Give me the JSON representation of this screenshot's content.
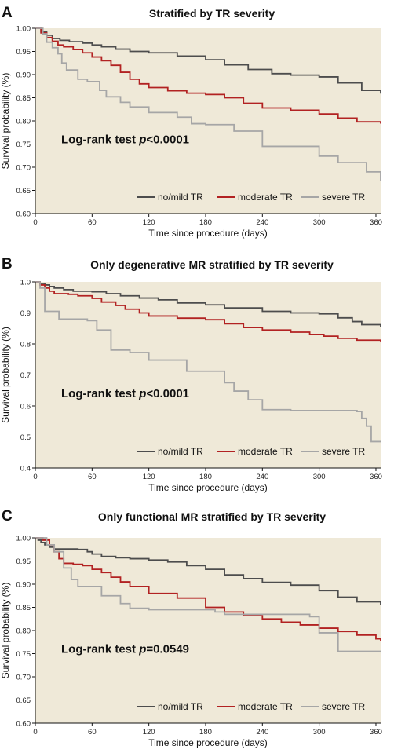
{
  "chart_data": [
    {
      "type": "line",
      "panel_label": "A",
      "title": "Stratified by TR severity",
      "xlabel": "Time since procedure (days)",
      "ylabel": "Survival probability (%)",
      "xlim": [
        0,
        365
      ],
      "ylim": [
        0.6,
        1.0
      ],
      "xticks": [
        0,
        60,
        120,
        180,
        240,
        300,
        360
      ],
      "xtick_labels": [
        "0",
        "60",
        "120",
        "180",
        "240",
        "300",
        "360"
      ],
      "yticks": [
        0.6,
        0.65,
        0.7,
        0.75,
        0.8,
        0.85,
        0.9,
        0.95,
        1.0
      ],
      "ytick_labels": [
        "0.60",
        "0.65",
        "0.70",
        "0.75",
        "0.80",
        "0.85",
        "0.90",
        "0.95",
        "1.00"
      ],
      "annotation": {
        "pre": "Log-rank test ",
        "p": "p",
        "post": "<0.0001"
      },
      "background": "#efe9d8",
      "series": [
        {
          "name": "no/mild TR",
          "color": "#4d4d4d",
          "x": [
            0,
            6,
            12,
            18,
            26,
            36,
            50,
            60,
            70,
            85,
            100,
            120,
            150,
            180,
            200,
            225,
            250,
            270,
            300,
            320,
            345,
            365
          ],
          "y": [
            1.0,
            0.992,
            0.985,
            0.978,
            0.974,
            0.971,
            0.968,
            0.964,
            0.96,
            0.955,
            0.95,
            0.947,
            0.94,
            0.932,
            0.921,
            0.911,
            0.902,
            0.899,
            0.895,
            0.882,
            0.866,
            0.859
          ]
        },
        {
          "name": "moderate TR",
          "color": "#b22222",
          "x": [
            0,
            6,
            12,
            18,
            24,
            30,
            40,
            50,
            60,
            70,
            80,
            90,
            100,
            110,
            120,
            140,
            160,
            180,
            200,
            220,
            240,
            270,
            300,
            320,
            340,
            365
          ],
          "y": [
            1.0,
            0.99,
            0.98,
            0.972,
            0.964,
            0.96,
            0.954,
            0.947,
            0.938,
            0.93,
            0.92,
            0.905,
            0.89,
            0.88,
            0.872,
            0.865,
            0.86,
            0.857,
            0.85,
            0.838,
            0.828,
            0.823,
            0.815,
            0.806,
            0.798,
            0.794
          ]
        },
        {
          "name": "severe TR",
          "color": "#a6a6a6",
          "x": [
            0,
            8,
            12,
            18,
            24,
            28,
            33,
            45,
            55,
            68,
            75,
            90,
            100,
            120,
            150,
            165,
            180,
            210,
            240,
            300,
            320,
            350,
            365
          ],
          "y": [
            1.0,
            0.988,
            0.97,
            0.958,
            0.945,
            0.925,
            0.91,
            0.89,
            0.885,
            0.866,
            0.852,
            0.84,
            0.83,
            0.818,
            0.808,
            0.794,
            0.792,
            0.778,
            0.745,
            0.724,
            0.71,
            0.69,
            0.67
          ]
        }
      ]
    },
    {
      "type": "line",
      "panel_label": "B",
      "title": "Only degenerative MR stratified by TR severity",
      "xlabel": "Time since procedure (days)",
      "ylabel": "Survival probability (%)",
      "xlim": [
        0,
        365
      ],
      "ylim": [
        0.4,
        1.0
      ],
      "xticks": [
        0,
        60,
        120,
        180,
        240,
        300,
        360
      ],
      "xtick_labels": [
        "0",
        "60",
        "120",
        "180",
        "240",
        "300",
        "360"
      ],
      "yticks": [
        0.4,
        0.5,
        0.6,
        0.7,
        0.8,
        0.9,
        1.0
      ],
      "ytick_labels": [
        "0.4",
        "0.5",
        "0.6",
        "0.7",
        "0.8",
        "0.9",
        "1.0"
      ],
      "annotation": {
        "pre": "Log-rank test ",
        "p": "p",
        "post": "<0.0001"
      },
      "background": "#efe9d8",
      "series": [
        {
          "name": "no/mild TR",
          "color": "#4d4d4d",
          "x": [
            0,
            5,
            10,
            15,
            20,
            30,
            40,
            60,
            75,
            90,
            110,
            130,
            150,
            180,
            200,
            240,
            270,
            300,
            320,
            335,
            345,
            365
          ],
          "y": [
            1.0,
            0.995,
            0.99,
            0.985,
            0.98,
            0.975,
            0.97,
            0.968,
            0.962,
            0.955,
            0.948,
            0.942,
            0.932,
            0.926,
            0.916,
            0.905,
            0.9,
            0.897,
            0.884,
            0.872,
            0.862,
            0.853
          ]
        },
        {
          "name": "moderate TR",
          "color": "#b22222",
          "x": [
            0,
            5,
            10,
            15,
            20,
            35,
            45,
            60,
            70,
            85,
            95,
            110,
            120,
            150,
            180,
            200,
            220,
            240,
            270,
            290,
            305,
            320,
            340,
            365
          ],
          "y": [
            1.0,
            0.99,
            0.98,
            0.97,
            0.962,
            0.96,
            0.955,
            0.947,
            0.935,
            0.924,
            0.912,
            0.9,
            0.89,
            0.883,
            0.878,
            0.865,
            0.853,
            0.845,
            0.838,
            0.83,
            0.825,
            0.818,
            0.812,
            0.808
          ]
        },
        {
          "name": "severe TR",
          "color": "#a6a6a6",
          "x": [
            0,
            5,
            10,
            25,
            55,
            65,
            80,
            100,
            120,
            160,
            200,
            210,
            225,
            240,
            270,
            300,
            340,
            345,
            350,
            355,
            365
          ],
          "y": [
            1.0,
            0.98,
            0.905,
            0.88,
            0.875,
            0.845,
            0.78,
            0.772,
            0.748,
            0.712,
            0.675,
            0.648,
            0.62,
            0.588,
            0.585,
            0.585,
            0.582,
            0.56,
            0.535,
            0.485,
            0.485
          ]
        }
      ]
    },
    {
      "type": "line",
      "panel_label": "C",
      "title": "Only functional MR stratified by TR severity",
      "xlabel": "Time since procedure (days)",
      "ylabel": "Survival probability (%)",
      "xlim": [
        0,
        365
      ],
      "ylim": [
        0.6,
        1.0
      ],
      "xticks": [
        0,
        60,
        120,
        180,
        240,
        300,
        360
      ],
      "xtick_labels": [
        "0",
        "60",
        "120",
        "180",
        "240",
        "300",
        "360"
      ],
      "yticks": [
        0.6,
        0.65,
        0.7,
        0.75,
        0.8,
        0.85,
        0.9,
        0.95,
        1.0
      ],
      "ytick_labels": [
        "0.60",
        "0.65",
        "0.70",
        "0.75",
        "0.80",
        "0.85",
        "0.90",
        "0.95",
        "1.00"
      ],
      "annotation": {
        "pre": "Log-rank test ",
        "p": "p",
        "post": "=0.0549"
      },
      "background": "#efe9d8",
      "series": [
        {
          "name": "no/mild TR",
          "color": "#4d4d4d",
          "x": [
            0,
            3,
            6,
            10,
            15,
            20,
            45,
            55,
            60,
            70,
            85,
            100,
            120,
            140,
            160,
            180,
            200,
            220,
            240,
            270,
            300,
            320,
            340,
            365
          ],
          "y": [
            1.0,
            0.995,
            0.99,
            0.985,
            0.98,
            0.976,
            0.975,
            0.97,
            0.965,
            0.96,
            0.957,
            0.955,
            0.952,
            0.948,
            0.94,
            0.932,
            0.92,
            0.912,
            0.904,
            0.898,
            0.886,
            0.872,
            0.862,
            0.855
          ]
        },
        {
          "name": "moderate TR",
          "color": "#b22222",
          "x": [
            0,
            8,
            15,
            20,
            25,
            30,
            40,
            50,
            60,
            70,
            80,
            90,
            100,
            120,
            150,
            180,
            200,
            220,
            240,
            260,
            280,
            300,
            320,
            340,
            360,
            365
          ],
          "y": [
            1.0,
            0.995,
            0.985,
            0.97,
            0.955,
            0.945,
            0.943,
            0.94,
            0.932,
            0.925,
            0.915,
            0.905,
            0.895,
            0.88,
            0.87,
            0.85,
            0.84,
            0.832,
            0.825,
            0.818,
            0.812,
            0.805,
            0.798,
            0.79,
            0.782,
            0.778
          ]
        },
        {
          "name": "severe TR",
          "color": "#a6a6a6",
          "x": [
            0,
            12,
            20,
            30,
            38,
            45,
            70,
            90,
            100,
            120,
            160,
            190,
            200,
            290,
            300,
            320,
            350,
            365
          ],
          "y": [
            1.0,
            0.985,
            0.97,
            0.935,
            0.91,
            0.895,
            0.875,
            0.858,
            0.848,
            0.845,
            0.845,
            0.84,
            0.835,
            0.83,
            0.795,
            0.755,
            0.755,
            0.755
          ]
        }
      ]
    }
  ]
}
